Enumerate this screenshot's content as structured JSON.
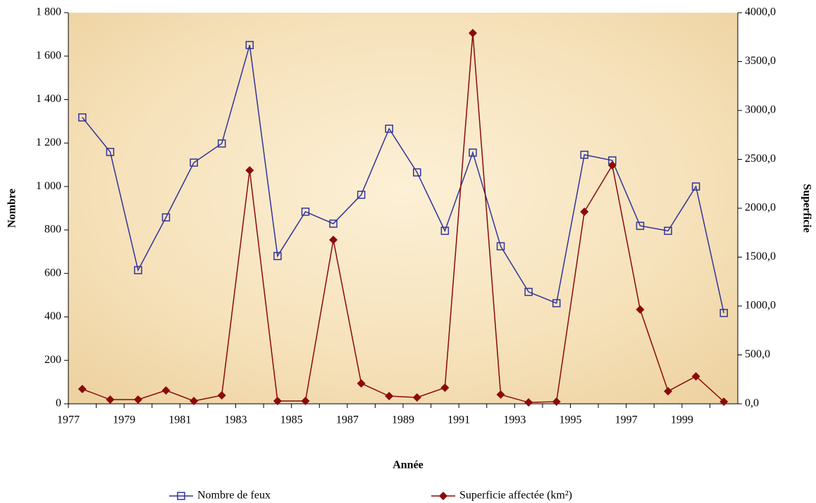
{
  "chart_data": {
    "type": "line",
    "x_label": "Année",
    "y_label": "Nombre",
    "y2_label": "Superficie",
    "categories": [
      "1977",
      null,
      "1979",
      null,
      "1981",
      null,
      "1983",
      null,
      "1985",
      null,
      "1987",
      null,
      "1989",
      null,
      "1991",
      null,
      "1993",
      null,
      "1995",
      null,
      "1997",
      null,
      "1999",
      null
    ],
    "series": [
      {
        "name": "Nombre de feux",
        "color": "#33339a",
        "marker": "square",
        "axis": "y",
        "values": [
          1318,
          1159,
          615,
          858,
          1110,
          1198,
          1651,
          680,
          884,
          829,
          962,
          1266,
          1065,
          796,
          1156,
          725,
          515,
          463,
          1146,
          1120,
          819,
          796,
          1000,
          418
        ]
      },
      {
        "name": "Superficie affectée (km²)",
        "color": "#8b0a0a",
        "marker": "diamond",
        "axis": "y2",
        "values": [
          151,
          43,
          43,
          137,
          29,
          86,
          2388,
          29,
          29,
          1676,
          209,
          79,
          65,
          165,
          3791,
          94,
          14,
          22,
          1964,
          2439,
          964,
          129,
          281,
          22
        ]
      }
    ],
    "ylim": [
      0,
      1800
    ],
    "yticks": [
      0,
      200,
      400,
      600,
      800,
      {
        "value": 1000,
        "label": "1 000"
      },
      {
        "value": 1200,
        "label": "1 200"
      },
      {
        "value": 1400,
        "label": "1 400"
      },
      {
        "value": 1600,
        "label": "1 600"
      },
      {
        "value": 1800,
        "label": "1 800"
      }
    ],
    "y2lim": [
      0,
      4000
    ],
    "y2ticks": [
      {
        "value": 0,
        "label": "0,0"
      },
      {
        "value": 500,
        "label": "500,0"
      },
      {
        "value": 1000,
        "label": "1000,0"
      },
      {
        "value": 1500,
        "label": "1500,0"
      },
      {
        "value": 2000,
        "label": "2000,0"
      },
      {
        "value": 2500,
        "label": "2500,0"
      },
      {
        "value": 3000,
        "label": "3000,0"
      },
      {
        "value": 3500,
        "label": "3500,0"
      },
      {
        "value": 4000,
        "label": "4000,0"
      }
    ],
    "grid": false,
    "legend": "bottom"
  }
}
